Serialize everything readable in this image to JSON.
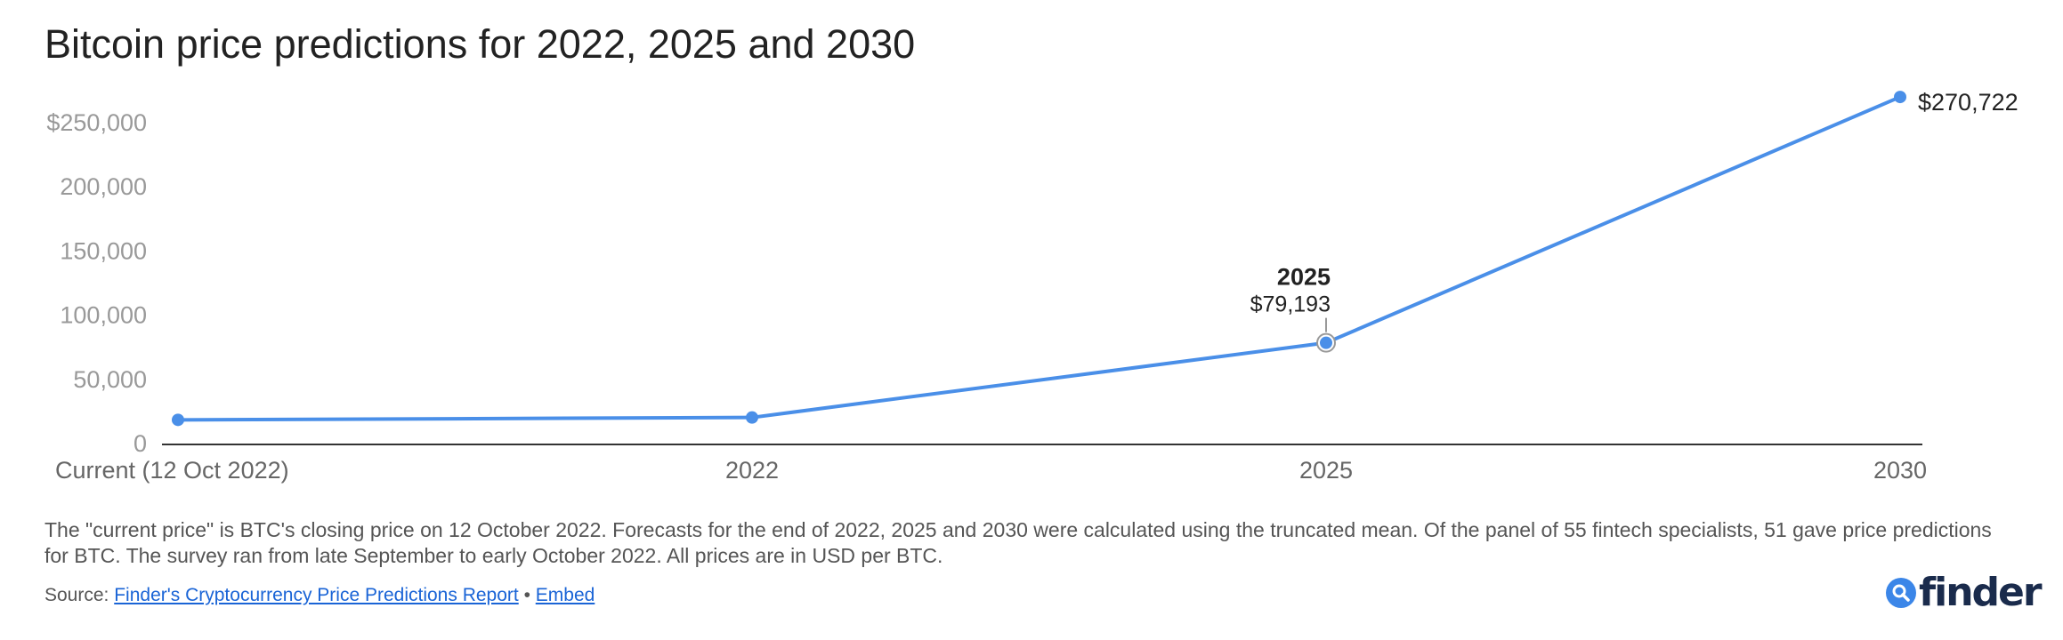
{
  "title": "Bitcoin price predictions for 2022, 2025 and 2030",
  "chart_data": {
    "type": "line",
    "title": "Bitcoin price predictions for 2022, 2025 and 2030",
    "xlabel": "",
    "ylabel": "",
    "categories": [
      "Current (12 Oct 2022)",
      "2022",
      "2025",
      "2030"
    ],
    "series": [
      {
        "values": [
          19155,
          21000,
          79193,
          270722
        ],
        "color": "#4a8fe8"
      }
    ],
    "ylim": [
      0,
      250000
    ],
    "yticks": [
      {
        "value": 250000,
        "label": "$250,000"
      },
      {
        "value": 200000,
        "label": "200,000"
      },
      {
        "value": 150000,
        "label": "150,000"
      },
      {
        "value": 100000,
        "label": "100,000"
      },
      {
        "value": 50000,
        "label": "50,000"
      },
      {
        "value": 0,
        "label": "0"
      }
    ],
    "annotations": [
      {
        "category": "2025",
        "title": "2025",
        "label": "$79,193"
      },
      {
        "category": "2030",
        "label": "$270,722"
      }
    ],
    "grid": false
  },
  "footnote": "The \"current price\" is BTC's closing price on 12 October 2022. Forecasts for the end of 2022, 2025 and 2030 were calculated using the truncated mean. Of the panel of 55 fintech specialists, 51 gave price predictions for BTC. The survey ran from late September to early October 2022. All prices are in USD per BTC.",
  "source": {
    "prefix": "Source: ",
    "link_label": "Finder's Cryptocurrency Price Predictions Report",
    "separator": " • ",
    "embed_label": "Embed"
  },
  "logo": {
    "text": "finder",
    "icon": "search-icon",
    "color": "#3b86e8"
  }
}
